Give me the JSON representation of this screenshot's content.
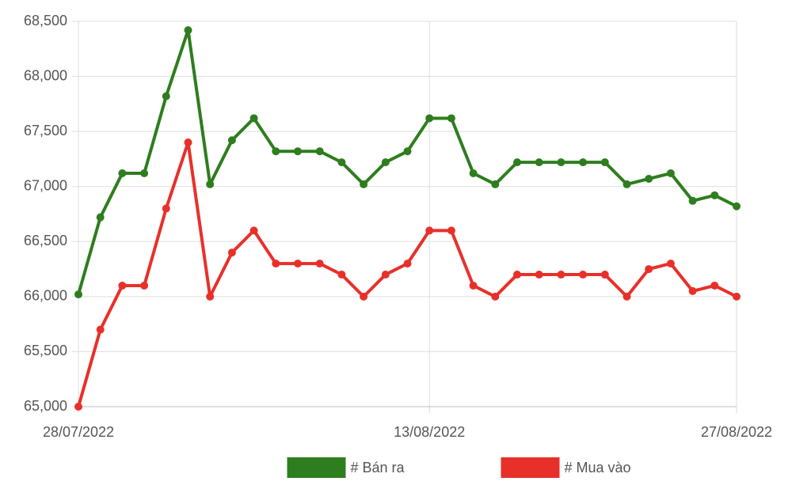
{
  "chart_data": {
    "type": "line",
    "categories": [
      "28/07/2022",
      null,
      null,
      null,
      null,
      null,
      null,
      null,
      null,
      null,
      null,
      null,
      null,
      null,
      null,
      null,
      "13/08/2022",
      null,
      null,
      null,
      null,
      null,
      null,
      null,
      null,
      null,
      null,
      null,
      null,
      null,
      "27/08/2022"
    ],
    "series": [
      {
        "name": "# Bán ra",
        "color": "#2e7d1e",
        "values": [
          66020,
          66720,
          67120,
          67120,
          67820,
          68420,
          67020,
          67420,
          67620,
          67320,
          67320,
          67320,
          67220,
          67020,
          67220,
          67320,
          67620,
          67620,
          67120,
          67020,
          67220,
          67220,
          67220,
          67220,
          67220,
          67020,
          67070,
          67120,
          66870,
          66920,
          66820
        ]
      },
      {
        "name": "# Mua vào",
        "color": "#e8302a",
        "values": [
          65000,
          65700,
          66100,
          66100,
          66800,
          67400,
          66000,
          66400,
          66600,
          66300,
          66300,
          66300,
          66200,
          66000,
          66200,
          66300,
          66600,
          66600,
          66100,
          66000,
          66200,
          66200,
          66200,
          66200,
          66200,
          66000,
          66250,
          66300,
          66050,
          66100,
          66000
        ]
      }
    ],
    "ylim": [
      65000,
      68500
    ],
    "yticks": [
      {
        "value": 65000,
        "label": "65,000"
      },
      {
        "value": 65500,
        "label": "65,500"
      },
      {
        "value": 66000,
        "label": "66,000"
      },
      {
        "value": 66500,
        "label": "66,500"
      },
      {
        "value": 67000,
        "label": "67,000"
      },
      {
        "value": 67500,
        "label": "67,500"
      },
      {
        "value": 68000,
        "label": "68,000"
      },
      {
        "value": 68500,
        "label": "68,500"
      }
    ],
    "grid": true,
    "legend": "bottom"
  }
}
